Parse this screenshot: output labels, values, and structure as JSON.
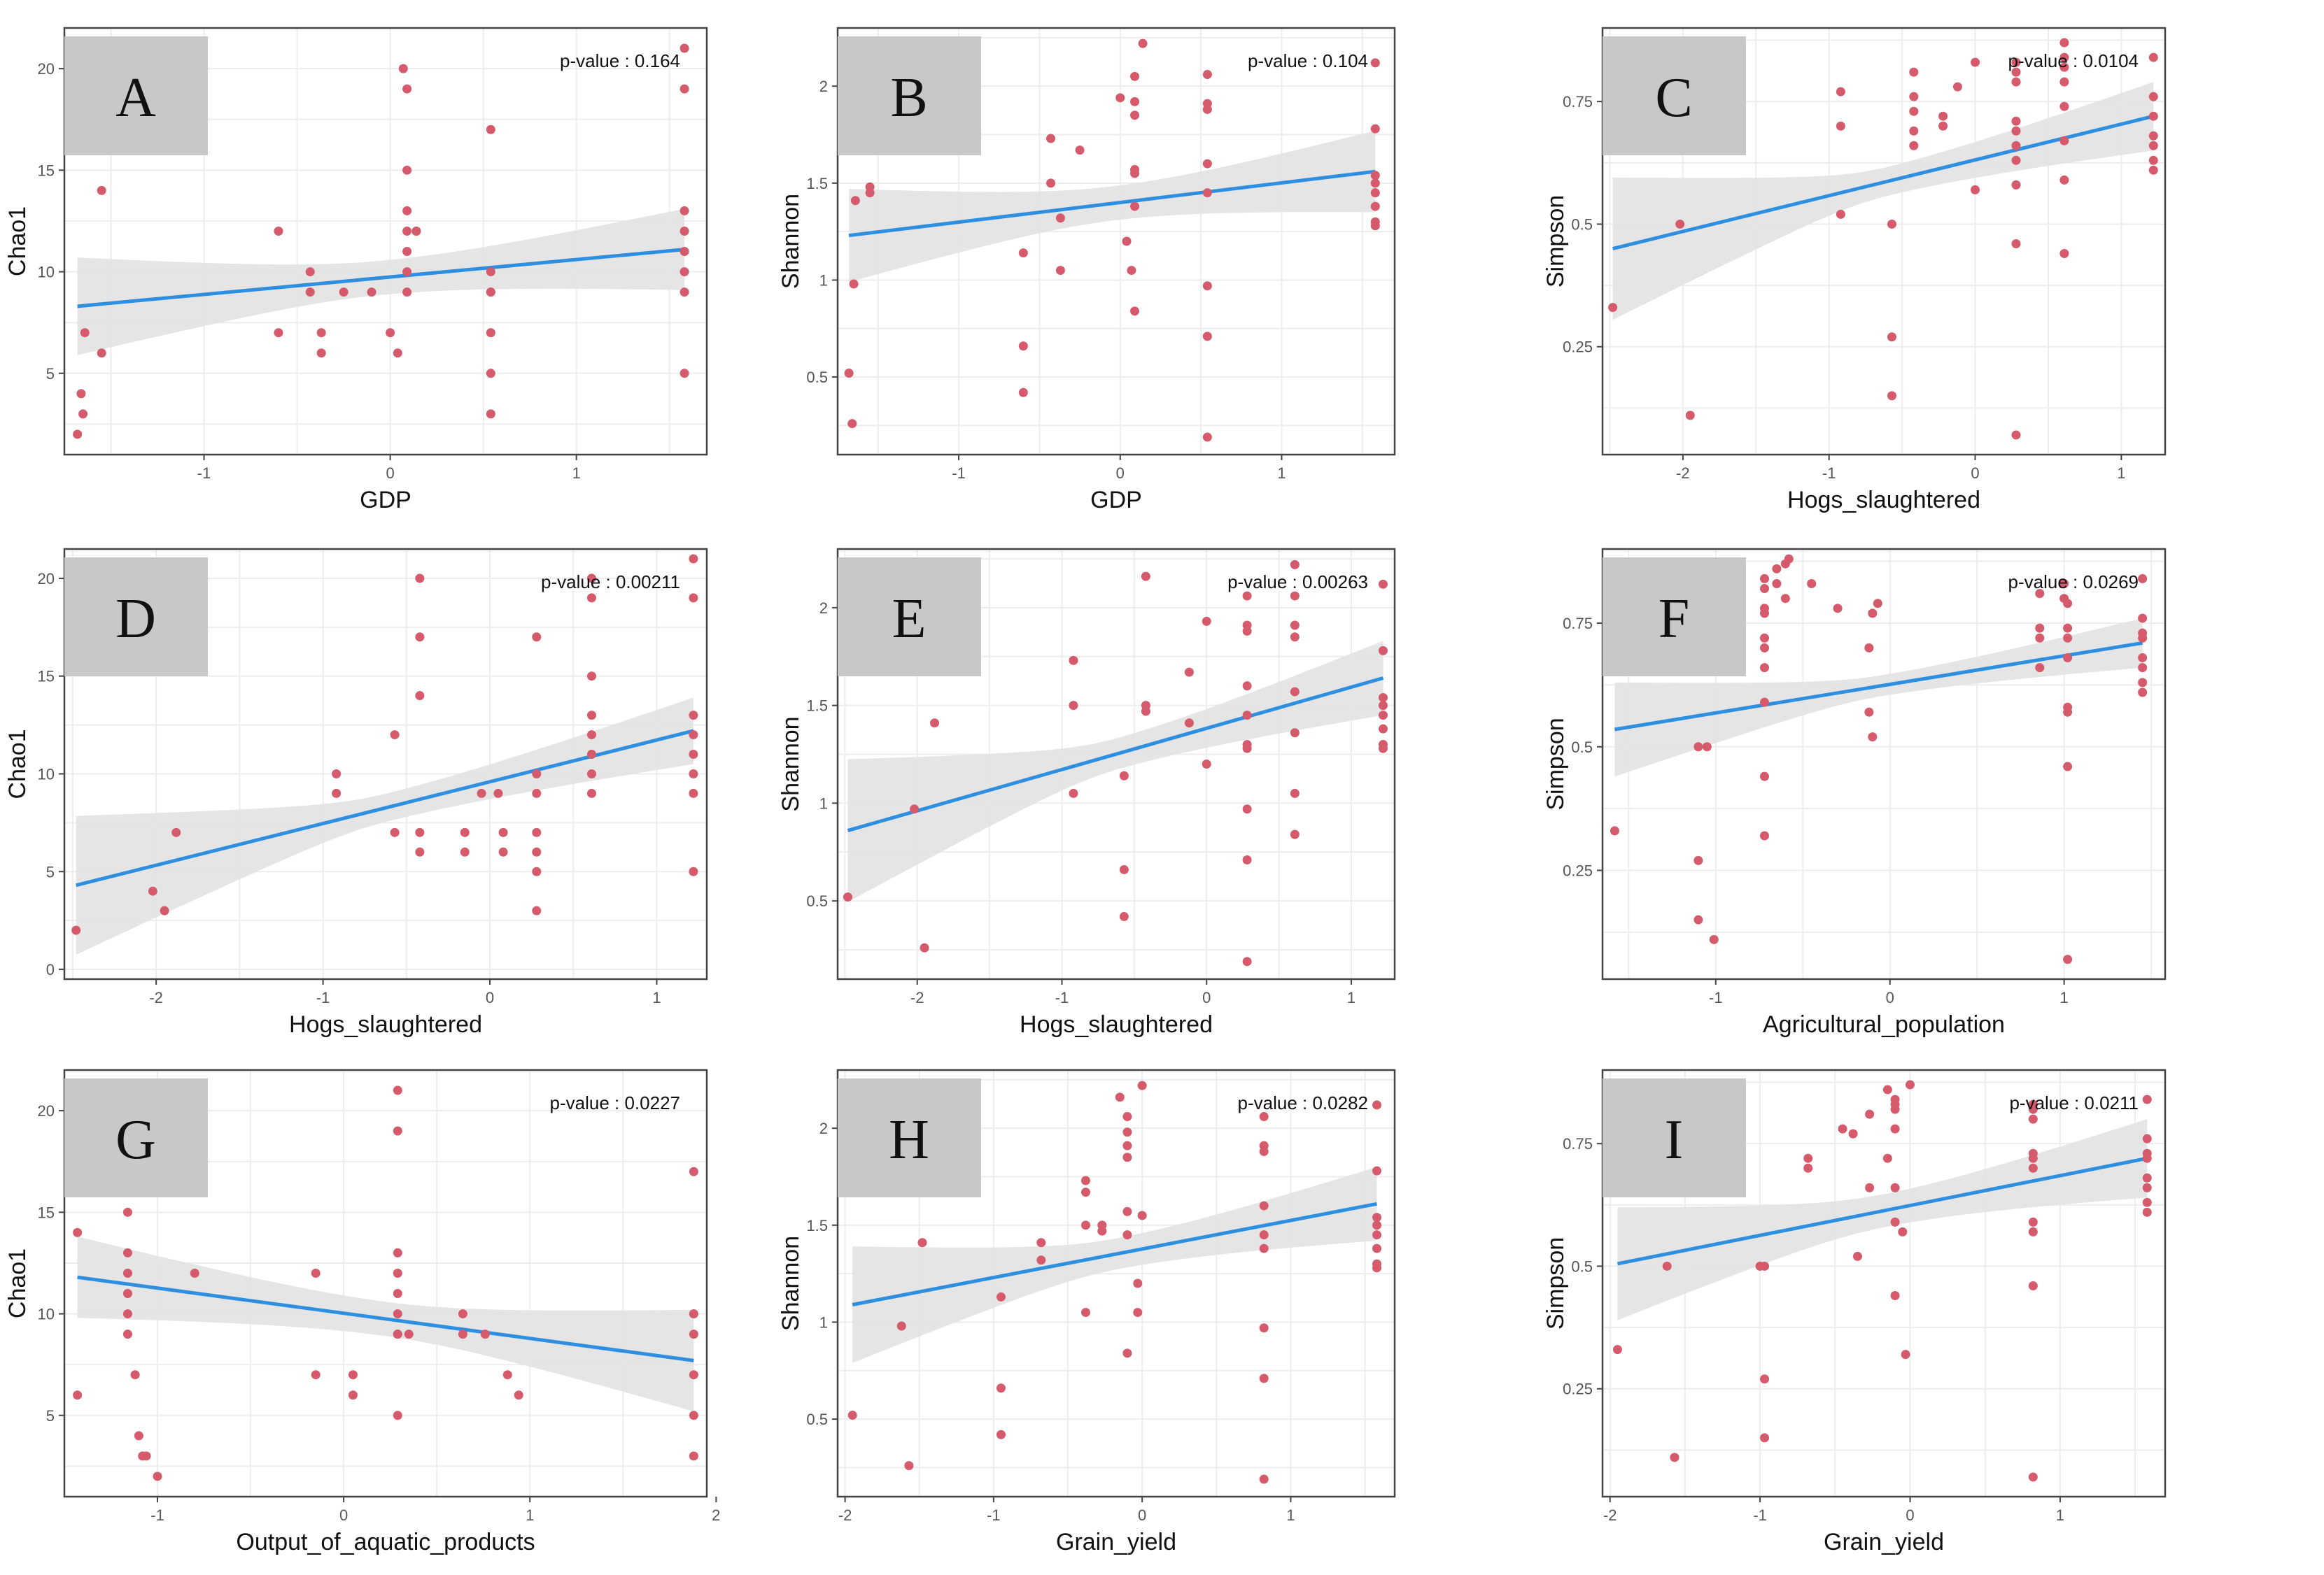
{
  "colors": {
    "point": "#D45A6C",
    "line": "#2E8FE0",
    "band": "#E2E2E2",
    "grid": "#EDEDED",
    "frame": "#444444",
    "label_box": "#C8C8C8"
  },
  "chart_data": [
    {
      "panel": "A",
      "type": "scatter",
      "xlabel": "GDP",
      "ylabel": "Chao1",
      "pvalue_label": "p-value : 0.164",
      "xlim": [
        -1.75,
        1.7
      ],
      "ylim": [
        1,
        22
      ],
      "xticks": [
        -1,
        0,
        1
      ],
      "yticks": [
        5,
        10,
        15,
        20
      ],
      "x": [
        -1.68,
        -1.66,
        -1.65,
        -1.64,
        -1.55,
        -1.55,
        -0.6,
        -0.6,
        -0.43,
        -0.43,
        -0.37,
        -0.37,
        -0.25,
        -0.1,
        0,
        0.04,
        0.07,
        0.09,
        0.09,
        0.09,
        0.09,
        0.09,
        0.09,
        0.09,
        0.14,
        0.14,
        0.54,
        0.54,
        0.54,
        0.54,
        0.54,
        0.54,
        0.54,
        1.58,
        1.58,
        1.58,
        1.58,
        1.58,
        1.58,
        1.58,
        1.58
      ],
      "y": [
        2,
        4,
        3,
        7,
        14,
        6,
        12,
        7,
        10,
        9,
        7,
        6,
        9,
        9,
        7,
        6,
        20,
        19,
        15,
        13,
        12,
        11,
        10,
        9,
        12,
        12,
        17,
        10,
        9,
        7,
        5,
        3,
        9,
        21,
        19,
        13,
        12,
        11,
        10,
        9,
        5
      ],
      "fit": {
        "x": [
          -1.68,
          1.58
        ],
        "y": [
          8.3,
          11.1
        ]
      },
      "band": {
        "upper": [
          10.7,
          13.1
        ],
        "lower": [
          5.9,
          9.1
        ]
      }
    },
    {
      "panel": "B",
      "type": "scatter",
      "xlabel": "GDP",
      "ylabel": "Shannon",
      "pvalue_label": "p-value : 0.104",
      "xlim": [
        -1.75,
        1.7
      ],
      "ylim": [
        0.1,
        2.3
      ],
      "xticks": [
        -1,
        0,
        1
      ],
      "yticks": [
        0.5,
        1.0,
        1.5,
        2.0
      ],
      "x": [
        -1.68,
        -1.66,
        -1.65,
        -1.64,
        -1.55,
        -1.55,
        -0.6,
        -0.6,
        -0.6,
        -0.43,
        -0.43,
        -0.37,
        -0.37,
        -0.25,
        0,
        0.04,
        0.07,
        0.09,
        0.09,
        0.09,
        0.09,
        0.09,
        0.09,
        0.09,
        0.14,
        0.54,
        0.54,
        0.54,
        0.54,
        0.54,
        0.54,
        0.54,
        0.54,
        1.58,
        1.58,
        1.58,
        1.58,
        1.58,
        1.58,
        1.58,
        1.58
      ],
      "y": [
        0.52,
        0.26,
        0.98,
        1.41,
        1.48,
        1.45,
        1.14,
        0.66,
        0.42,
        1.73,
        1.5,
        1.05,
        1.32,
        1.67,
        1.94,
        1.2,
        1.05,
        2.05,
        1.92,
        1.85,
        1.57,
        1.55,
        1.38,
        0.84,
        2.22,
        2.06,
        1.91,
        1.88,
        1.6,
        1.45,
        0.97,
        0.71,
        0.19,
        2.12,
        1.78,
        1.54,
        1.5,
        1.45,
        1.38,
        1.3,
        1.28
      ],
      "fit": {
        "x": [
          -1.68,
          1.58
        ],
        "y": [
          1.23,
          1.56
        ]
      },
      "band": {
        "upper": [
          1.47,
          1.77
        ],
        "lower": [
          0.99,
          1.35
        ]
      }
    },
    {
      "panel": "C",
      "type": "scatter",
      "xlabel": "Hogs_slaughtered",
      "ylabel": "Simpson",
      "pvalue_label": "p-value : 0.0104",
      "xlim": [
        -2.55,
        1.3
      ],
      "ylim": [
        0.03,
        0.9
      ],
      "xticks": [
        -2,
        -1,
        0,
        1
      ],
      "yticks": [
        0.25,
        0.5,
        0.75
      ],
      "x": [
        -2.48,
        -2.02,
        -1.95,
        -0.92,
        -0.92,
        -0.92,
        -0.57,
        -0.57,
        -0.57,
        -0.42,
        -0.42,
        -0.42,
        -0.42,
        -0.42,
        -0.22,
        -0.22,
        -0.12,
        0.0,
        0.0,
        0.28,
        0.28,
        0.28,
        0.28,
        0.28,
        0.28,
        0.28,
        0.28,
        0.28,
        0.28,
        0.61,
        0.61,
        0.61,
        0.61,
        0.61,
        0.61,
        0.61,
        0.61,
        1.22,
        1.22,
        1.22,
        1.22,
        1.22,
        1.22,
        1.22
      ],
      "y": [
        0.33,
        0.5,
        0.11,
        0.77,
        0.7,
        0.52,
        0.5,
        0.27,
        0.15,
        0.81,
        0.76,
        0.73,
        0.69,
        0.66,
        0.72,
        0.7,
        0.78,
        0.83,
        0.57,
        0.83,
        0.81,
        0.79,
        0.71,
        0.69,
        0.66,
        0.63,
        0.58,
        0.46,
        0.07,
        0.87,
        0.84,
        0.82,
        0.79,
        0.74,
        0.67,
        0.59,
        0.44,
        0.84,
        0.76,
        0.72,
        0.68,
        0.66,
        0.63,
        0.61
      ],
      "fit": {
        "x": [
          -2.48,
          1.22
        ],
        "y": [
          0.45,
          0.72
        ]
      },
      "band": {
        "upper": [
          0.6,
          0.79
        ],
        "lower": [
          0.31,
          0.65
        ]
      }
    },
    {
      "panel": "D",
      "type": "scatter",
      "xlabel": "Hogs_slaughtered",
      "ylabel": "Chao1",
      "pvalue_label": "p-value : 0.00211",
      "xlim": [
        -2.55,
        1.3
      ],
      "ylim": [
        -0.5,
        21.5
      ],
      "xticks": [
        -2,
        -1,
        0,
        1
      ],
      "yticks": [
        0,
        5,
        10,
        15,
        20
      ],
      "x": [
        -2.48,
        -2.02,
        -1.95,
        -1.88,
        -0.92,
        -0.92,
        -0.57,
        -0.57,
        -0.42,
        -0.42,
        -0.42,
        -0.42,
        -0.42,
        -0.15,
        -0.15,
        -0.05,
        0.05,
        0.08,
        0.08,
        0.28,
        0.28,
        0.28,
        0.28,
        0.28,
        0.28,
        0.28,
        0.61,
        0.61,
        0.61,
        0.61,
        0.61,
        0.61,
        0.61,
        0.61,
        1.22,
        1.22,
        1.22,
        1.22,
        1.22,
        1.22,
        1.22,
        1.22
      ],
      "y": [
        2,
        4,
        3,
        7,
        10,
        9,
        12,
        7,
        20,
        17,
        14,
        7,
        6,
        7,
        6,
        9,
        9,
        7,
        6,
        17,
        10,
        9,
        7,
        6,
        5,
        3,
        20,
        19,
        15,
        13,
        12,
        11,
        10,
        9,
        21,
        19,
        13,
        12,
        11,
        10,
        9,
        5
      ],
      "fit": {
        "x": [
          -2.48,
          1.22
        ],
        "y": [
          4.3,
          12.2
        ]
      },
      "band": {
        "upper": [
          7.9,
          13.9
        ],
        "lower": [
          0.8,
          10.5
        ]
      }
    },
    {
      "panel": "E",
      "type": "scatter",
      "xlabel": "Hogs_slaughtered",
      "ylabel": "Shannon",
      "pvalue_label": "p-value : 0.00263",
      "xlim": [
        -2.55,
        1.3
      ],
      "ylim": [
        0.1,
        2.3
      ],
      "xticks": [
        -2,
        -1,
        0,
        1
      ],
      "yticks": [
        0.5,
        1.0,
        1.5,
        2.0
      ],
      "x": [
        -2.48,
        -2.02,
        -1.95,
        -1.88,
        -0.92,
        -0.92,
        -0.92,
        -0.57,
        -0.57,
        -0.57,
        -0.42,
        -0.42,
        -0.42,
        -0.12,
        -0.12,
        0,
        0,
        0.28,
        0.28,
        0.28,
        0.28,
        0.28,
        0.28,
        0.28,
        0.28,
        0.28,
        0.28,
        0.61,
        0.61,
        0.61,
        0.61,
        0.61,
        0.61,
        0.61,
        0.61,
        1.22,
        1.22,
        1.22,
        1.22,
        1.22,
        1.22,
        1.22,
        1.22
      ],
      "y": [
        0.52,
        0.97,
        0.26,
        1.41,
        1.73,
        1.5,
        1.05,
        1.14,
        0.66,
        0.42,
        2.16,
        1.5,
        1.47,
        1.67,
        1.41,
        1.93,
        1.2,
        2.06,
        1.91,
        1.88,
        1.6,
        1.45,
        1.3,
        1.28,
        0.97,
        0.71,
        0.19,
        2.22,
        2.06,
        1.91,
        1.85,
        1.57,
        1.36,
        1.05,
        0.84,
        2.12,
        1.78,
        1.54,
        1.5,
        1.45,
        1.38,
        1.3,
        1.28
      ],
      "fit": {
        "x": [
          -2.48,
          1.22
        ],
        "y": [
          0.86,
          1.64
        ]
      },
      "band": {
        "upper": [
          1.23,
          1.83
        ],
        "lower": [
          0.5,
          1.45
        ]
      }
    },
    {
      "panel": "F",
      "type": "scatter",
      "xlabel": "Agricultural_population",
      "ylabel": "Simpson",
      "pvalue_label": "p-value : 0.0269",
      "xlim": [
        -1.65,
        1.58
      ],
      "ylim": [
        0.03,
        0.9
      ],
      "xticks": [
        -1,
        0,
        1
      ],
      "yticks": [
        0.25,
        0.5,
        0.75
      ],
      "x": [
        -1.58,
        -1.1,
        -1.1,
        -1.1,
        -1.05,
        -1.03,
        -1.01,
        -0.88,
        -0.72,
        -0.72,
        -0.72,
        -0.72,
        -0.72,
        -0.72,
        -0.72,
        -0.72,
        -0.72,
        -0.72,
        -0.65,
        -0.65,
        -0.6,
        -0.6,
        -0.58,
        -0.45,
        -0.3,
        -0.12,
        -0.12,
        -0.1,
        -0.1,
        -0.07,
        0.86,
        0.86,
        0.86,
        0.86,
        1.0,
        1.0,
        1.02,
        1.02,
        1.02,
        1.02,
        1.02,
        1.02,
        1.02,
        1.02,
        1.45,
        1.45,
        1.45,
        1.45,
        1.45,
        1.45,
        1.45,
        1.45
      ],
      "y": [
        0.33,
        0.5,
        0.27,
        0.15,
        0.5,
        0.72,
        0.11,
        0.72,
        0.84,
        0.82,
        0.78,
        0.77,
        0.72,
        0.7,
        0.66,
        0.59,
        0.44,
        0.32,
        0.86,
        0.83,
        0.87,
        0.8,
        0.88,
        0.83,
        0.78,
        0.7,
        0.57,
        0.52,
        0.77,
        0.79,
        0.81,
        0.74,
        0.72,
        0.66,
        0.83,
        0.8,
        0.79,
        0.74,
        0.72,
        0.68,
        0.58,
        0.57,
        0.46,
        0.07,
        0.84,
        0.76,
        0.72,
        0.68,
        0.66,
        0.63,
        0.61,
        0.73
      ],
      "fit": {
        "x": [
          -1.58,
          1.45
        ],
        "y": [
          0.535,
          0.71
        ]
      },
      "band": {
        "upper": [
          0.63,
          0.76
        ],
        "lower": [
          0.44,
          0.66
        ]
      }
    },
    {
      "panel": "G",
      "type": "scatter",
      "xlabel": "Output_of_aquatic_products",
      "ylabel": "Chao1",
      "pvalue_label": "p-value : 0.0227",
      "xlim": [
        -1.5,
        1.95
      ],
      "ylim": [
        1,
        22
      ],
      "xticks": [
        -1,
        0,
        1,
        2
      ],
      "yticks": [
        5,
        10,
        15,
        20
      ],
      "x": [
        -1.43,
        -1.43,
        -1.16,
        -1.16,
        -1.16,
        -1.16,
        -1.16,
        -1.16,
        -1.12,
        -1.1,
        -1.08,
        -1.06,
        -1.0,
        -0.8,
        -0.15,
        -0.15,
        0.05,
        0.05,
        0.29,
        0.29,
        0.29,
        0.29,
        0.29,
        0.29,
        0.29,
        0.29,
        0.29,
        0.35,
        0.64,
        0.64,
        0.76,
        0.88,
        0.94,
        1.88,
        1.88,
        1.88,
        1.88,
        1.88,
        1.88,
        1.88
      ],
      "y": [
        14,
        6,
        15,
        13,
        12,
        11,
        10,
        9,
        7,
        4,
        3,
        3,
        2,
        12,
        12,
        7,
        7,
        6,
        21,
        19,
        13,
        12,
        11,
        10,
        9,
        9,
        5,
        9,
        10,
        9,
        9,
        7,
        6,
        17,
        10,
        9,
        7,
        5,
        3,
        10
      ],
      "fit": {
        "x": [
          -1.43,
          1.88
        ],
        "y": [
          11.8,
          7.7
        ]
      },
      "band": {
        "upper": [
          13.8,
          10.2
        ],
        "lower": [
          9.8,
          5.2
        ]
      }
    },
    {
      "panel": "H",
      "type": "scatter",
      "xlabel": "Grain_yield",
      "ylabel": "Shannon",
      "pvalue_label": "p-value : 0.0282",
      "xlim": [
        -2.05,
        1.7
      ],
      "ylim": [
        0.1,
        2.3
      ],
      "xticks": [
        -2,
        -1,
        0,
        1
      ],
      "yticks": [
        0.5,
        1.0,
        1.5,
        2.0
      ],
      "x": [
        -1.95,
        -1.62,
        -1.57,
        -1.48,
        -0.95,
        -0.95,
        -0.95,
        -0.68,
        -0.68,
        -0.38,
        -0.38,
        -0.38,
        -0.38,
        -0.27,
        -0.27,
        -0.15,
        -0.1,
        -0.1,
        -0.1,
        -0.1,
        -0.1,
        -0.1,
        -0.1,
        -0.03,
        -0.03,
        0,
        0,
        0.82,
        0.82,
        0.82,
        0.82,
        0.82,
        0.82,
        0.82,
        0.82,
        0.82,
        1.58,
        1.58,
        1.58,
        1.58,
        1.58,
        1.58,
        1.58,
        1.58
      ],
      "y": [
        0.52,
        0.98,
        0.26,
        1.41,
        1.13,
        0.66,
        0.42,
        1.41,
        1.32,
        1.73,
        1.67,
        1.5,
        1.05,
        1.5,
        1.47,
        2.16,
        2.06,
        1.98,
        1.91,
        1.85,
        1.57,
        1.45,
        0.84,
        1.2,
        1.05,
        2.22,
        1.55,
        2.06,
        1.91,
        1.88,
        1.6,
        1.45,
        1.38,
        0.97,
        0.71,
        0.19,
        2.12,
        1.78,
        1.54,
        1.5,
        1.45,
        1.38,
        1.3,
        1.28
      ],
      "fit": {
        "x": [
          -1.95,
          1.58
        ],
        "y": [
          1.09,
          1.61
        ]
      },
      "band": {
        "upper": [
          1.39,
          1.8
        ],
        "lower": [
          0.79,
          1.42
        ]
      }
    },
    {
      "panel": "I",
      "type": "scatter",
      "xlabel": "Grain_yield",
      "ylabel": "Simpson",
      "pvalue_label": "p-value : 0.0211",
      "xlim": [
        -2.05,
        1.7
      ],
      "ylim": [
        0.03,
        0.9
      ],
      "xticks": [
        -2,
        -1,
        0,
        1
      ],
      "yticks": [
        0.25,
        0.5,
        0.75
      ],
      "x": [
        -1.95,
        -1.62,
        -1.57,
        -1.0,
        -0.97,
        -0.97,
        -0.97,
        -0.68,
        -0.68,
        -0.45,
        -0.38,
        -0.35,
        -0.27,
        -0.27,
        -0.15,
        -0.15,
        -0.1,
        -0.1,
        -0.1,
        -0.1,
        -0.1,
        -0.1,
        -0.1,
        -0.05,
        -0.03,
        0,
        0.82,
        0.82,
        0.82,
        0.82,
        0.82,
        0.82,
        0.82,
        0.82,
        0.82,
        0.82,
        1.58,
        1.58,
        1.58,
        1.58,
        1.58,
        1.58,
        1.58,
        1.58
      ],
      "y": [
        0.33,
        0.5,
        0.11,
        0.5,
        0.27,
        0.15,
        0.5,
        0.72,
        0.7,
        0.78,
        0.77,
        0.52,
        0.81,
        0.66,
        0.86,
        0.72,
        0.84,
        0.83,
        0.82,
        0.78,
        0.66,
        0.59,
        0.44,
        0.57,
        0.32,
        0.87,
        0.83,
        0.82,
        0.8,
        0.73,
        0.72,
        0.7,
        0.59,
        0.57,
        0.46,
        0.07,
        0.84,
        0.76,
        0.72,
        0.68,
        0.66,
        0.63,
        0.61,
        0.73
      ],
      "fit": {
        "x": [
          -1.95,
          1.58
        ],
        "y": [
          0.505,
          0.72
        ]
      },
      "band": {
        "upper": [
          0.62,
          0.8
        ],
        "lower": [
          0.39,
          0.64
        ]
      }
    }
  ]
}
